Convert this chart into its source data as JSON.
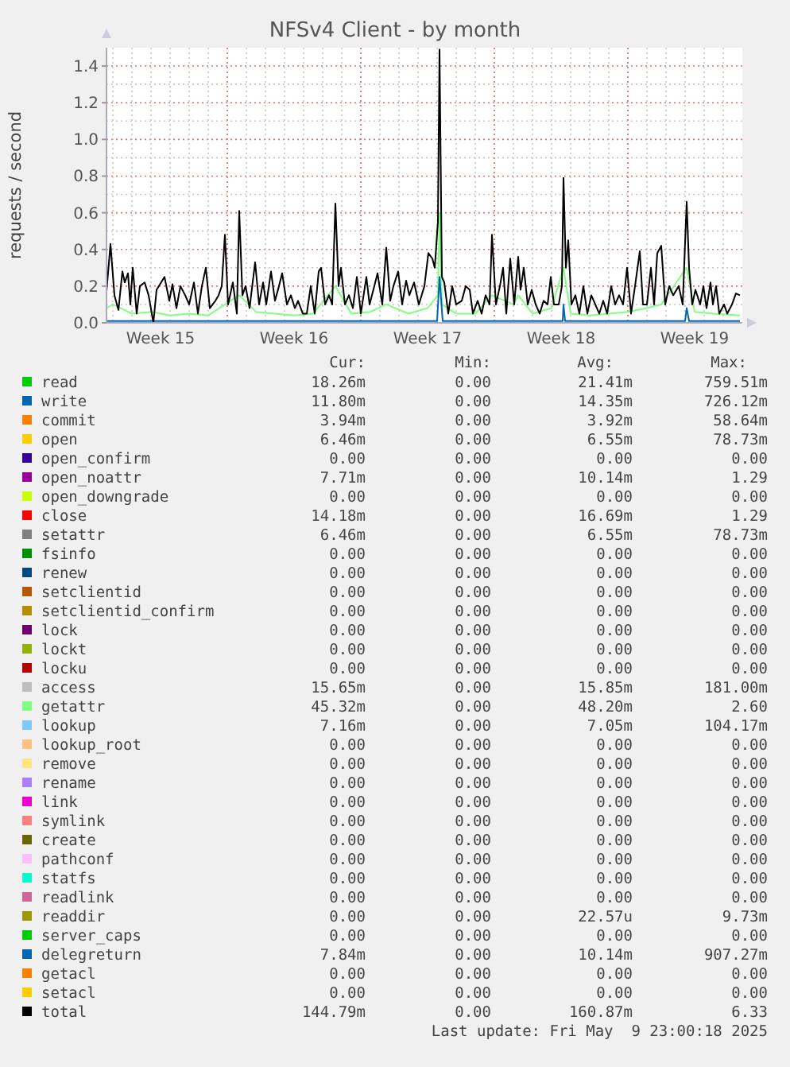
{
  "chart_data": {
    "type": "line",
    "title": "NFSv4 Client - by month",
    "ylabel": "requests / second",
    "xlim": [
      "2025-04-06T16:00",
      "2025-05-10T00:00"
    ],
    "ylim": [
      0,
      1.5
    ],
    "xticks": [
      {
        "value": "2025-04-09T12:00",
        "label": "Week 15"
      },
      {
        "value": "2025-04-16T12:00",
        "label": "Week 16"
      },
      {
        "value": "2025-04-23T12:00",
        "label": "Week 17"
      },
      {
        "value": "2025-04-30T12:00",
        "label": "Week 18"
      },
      {
        "value": "2025-05-07T12:00",
        "label": "Week 19"
      }
    ],
    "yticks": [
      {
        "value": 0,
        "label": "0.0"
      },
      {
        "value": 0.2,
        "label": "0.2"
      },
      {
        "value": 0.4,
        "label": "0.4"
      },
      {
        "value": 0.6,
        "label": "0.6"
      },
      {
        "value": 0.8,
        "label": "0.8"
      },
      {
        "value": 1,
        "label": "1.0"
      },
      {
        "value": 1.2,
        "label": "1.2"
      },
      {
        "value": 1.4,
        "label": "1.4"
      }
    ],
    "grid": true,
    "legend": "bottom",
    "marker": "none",
    "line_style": "solid",
    "series": [
      {
        "name": "read",
        "color": "#00cc00"
      },
      {
        "name": "write",
        "color": "#0066b3"
      },
      {
        "name": "commit",
        "color": "#ff8000"
      },
      {
        "name": "open",
        "color": "#ffcc00"
      },
      {
        "name": "open_confirm",
        "color": "#330099"
      },
      {
        "name": "open_noattr",
        "color": "#990099"
      },
      {
        "name": "open_downgrade",
        "color": "#ccff00"
      },
      {
        "name": "close",
        "color": "#ff0000"
      },
      {
        "name": "setattr",
        "color": "#808080"
      },
      {
        "name": "fsinfo",
        "color": "#008f00"
      },
      {
        "name": "renew",
        "color": "#00487d"
      },
      {
        "name": "setclientid",
        "color": "#b35a00"
      },
      {
        "name": "setclientid_confirm",
        "color": "#b38f00"
      },
      {
        "name": "lock",
        "color": "#6b006b"
      },
      {
        "name": "lockt",
        "color": "#8fb300"
      },
      {
        "name": "locku",
        "color": "#b30000"
      },
      {
        "name": "access",
        "color": "#bebebe"
      },
      {
        "name": "getattr",
        "color": "#80ff80",
        "x": [
          "2025-04-06T16:00",
          "2025-04-07T00:00",
          "2025-04-08T00:00",
          "2025-04-09T00:00",
          "2025-04-10T00:00",
          "2025-04-11T00:00",
          "2025-04-12T00:00",
          "2025-04-12T21:00",
          "2025-04-13T15:00",
          "2025-04-14T12:00",
          "2025-04-15T12:00",
          "2025-04-16T12:00",
          "2025-04-17T12:00",
          "2025-04-18T16:00",
          "2025-04-19T12:00",
          "2025-04-20T12:00",
          "2025-04-21T08:00",
          "2025-04-22T12:00",
          "2025-04-23T12:00",
          "2025-04-24T01:00",
          "2025-04-24T03:00",
          "2025-04-24T06:00",
          "2025-04-25T00:00",
          "2025-04-26T00:00",
          "2025-04-26T21:00",
          "2025-04-28T00:00",
          "2025-04-28T06:00",
          "2025-04-29T00:00",
          "2025-04-30T00:00",
          "2025-04-30T15:00",
          "2025-05-01T00:00",
          "2025-05-02T00:00",
          "2025-05-03T00:00",
          "2025-05-04T00:00",
          "2025-05-05T00:00",
          "2025-05-05T18:00",
          "2025-05-07T02:00",
          "2025-05-07T12:00",
          "2025-05-08T12:00",
          "2025-05-09T21:00"
        ],
        "values": [
          0.08,
          0.1,
          0.05,
          0.06,
          0.04,
          0.05,
          0.04,
          0.1,
          0.15,
          0.06,
          0.05,
          0.04,
          0.05,
          0.2,
          0.05,
          0.06,
          0.1,
          0.05,
          0.08,
          0.15,
          0.6,
          0.1,
          0.05,
          0.05,
          0.15,
          0.1,
          0.15,
          0.05,
          0.08,
          0.3,
          0.05,
          0.04,
          0.05,
          0.06,
          0.08,
          0.1,
          0.3,
          0.06,
          0.05,
          0.04
        ]
      },
      {
        "name": "lookup",
        "color": "#80c9ff"
      },
      {
        "name": "lookup_root",
        "color": "#ffc080"
      },
      {
        "name": "remove",
        "color": "#ffe680"
      },
      {
        "name": "rename",
        "color": "#aa80ff"
      },
      {
        "name": "link",
        "color": "#ee00cc"
      },
      {
        "name": "symlink",
        "color": "#ff8080"
      },
      {
        "name": "create",
        "color": "#666600"
      },
      {
        "name": "pathconf",
        "color": "#ffbfff"
      },
      {
        "name": "statfs",
        "color": "#00ffcc"
      },
      {
        "name": "readlink",
        "color": "#cc6699"
      },
      {
        "name": "readdir",
        "color": "#999900"
      },
      {
        "name": "server_caps",
        "color": "#00cc00"
      },
      {
        "name": "delegreturn",
        "color": "#0066b3",
        "x": [
          "2025-04-06T16:00",
          "2025-04-24T00:00",
          "2025-04-24T03:00",
          "2025-04-24T07:00",
          "2025-04-30T14:00",
          "2025-04-30T15:00",
          "2025-04-30T17:00",
          "2025-05-07T00:00",
          "2025-05-07T02:00",
          "2025-05-07T05:00",
          "2025-05-09T21:00"
        ],
        "values": [
          0.01,
          0.01,
          0.25,
          0.01,
          0.01,
          0.1,
          0.01,
          0.01,
          0.08,
          0.01,
          0.01
        ]
      },
      {
        "name": "getacl",
        "color": "#ff8000"
      },
      {
        "name": "setacl",
        "color": "#ffcc00"
      },
      {
        "name": "total",
        "color": "#000000",
        "x": [
          "2025-04-06T16:00",
          "2025-04-06T21:00",
          "2025-04-07T02:00",
          "2025-04-07T07:00",
          "2025-04-07T12:00",
          "2025-04-07T15:00",
          "2025-04-07T19:00",
          "2025-04-07T22:00",
          "2025-04-08T01:00",
          "2025-04-08T06:00",
          "2025-04-08T10:00",
          "2025-04-08T16:00",
          "2025-04-08T21:00",
          "2025-04-09T03:00",
          "2025-04-09T07:00",
          "2025-04-09T17:00",
          "2025-04-09T23:00",
          "2025-04-10T03:00",
          "2025-04-10T08:00",
          "2025-04-10T13:00",
          "2025-04-10T19:00",
          "2025-04-11T00:00",
          "2025-04-11T06:00",
          "2025-04-11T11:00",
          "2025-04-11T16:00",
          "2025-04-11T21:00",
          "2025-04-12T02:00",
          "2025-04-12T09:00",
          "2025-04-12T13:00",
          "2025-04-12T17:00",
          "2025-04-12T21:00",
          "2025-04-13T01:00",
          "2025-04-13T07:00",
          "2025-04-13T12:00",
          "2025-04-13T15:00",
          "2025-04-13T19:00",
          "2025-04-13T23:00",
          "2025-04-14T04:00",
          "2025-04-14T11:00",
          "2025-04-14T16:00",
          "2025-04-14T21:00",
          "2025-04-15T01:00",
          "2025-04-15T07:00",
          "2025-04-15T12:00",
          "2025-04-15T17:00",
          "2025-04-15T21:00",
          "2025-04-16T03:00",
          "2025-04-16T08:00",
          "2025-04-16T13:00",
          "2025-04-16T17:00",
          "2025-04-16T23:00",
          "2025-04-17T04:00",
          "2025-04-17T09:00",
          "2025-04-17T14:00",
          "2025-04-17T19:00",
          "2025-04-17T22:00",
          "2025-04-18T03:00",
          "2025-04-18T08:00",
          "2025-04-18T12:00",
          "2025-04-18T16:00",
          "2025-04-18T20:00",
          "2025-04-18T23:00",
          "2025-04-19T04:00",
          "2025-04-19T09:00",
          "2025-04-19T14:00",
          "2025-04-19T19:00",
          "2025-04-20T00:00",
          "2025-04-20T07:00",
          "2025-04-20T11:00",
          "2025-04-20T17:00",
          "2025-04-20T21:00",
          "2025-04-21T03:00",
          "2025-04-21T08:00",
          "2025-04-21T13:00",
          "2025-04-21T17:00",
          "2025-04-21T23:00",
          "2025-04-22T04:00",
          "2025-04-22T09:00",
          "2025-04-22T13:00",
          "2025-04-22T19:00",
          "2025-04-23T01:00",
          "2025-04-23T08:00",
          "2025-04-23T13:00",
          "2025-04-23T18:00",
          "2025-04-23T21:00",
          "2025-04-24T01:00",
          "2025-04-24T03:00",
          "2025-04-24T06:00",
          "2025-04-24T09:00",
          "2025-04-24T14:00",
          "2025-04-24T19:00",
          "2025-04-25T00:00",
          "2025-04-25T07:00",
          "2025-04-25T12:00",
          "2025-04-25T17:00",
          "2025-04-25T21:00",
          "2025-04-26T03:00",
          "2025-04-26T08:00",
          "2025-04-26T13:00",
          "2025-04-26T18:00",
          "2025-04-26T21:00",
          "2025-04-27T02:00",
          "2025-04-27T07:00",
          "2025-04-27T11:00",
          "2025-04-27T15:00",
          "2025-04-27T20:00",
          "2025-04-28T01:00",
          "2025-04-28T06:00",
          "2025-04-28T09:00",
          "2025-04-28T13:00",
          "2025-04-28T18:00",
          "2025-04-28T23:00",
          "2025-04-29T04:00",
          "2025-04-29T09:00",
          "2025-04-29T14:00",
          "2025-04-29T19:00",
          "2025-04-29T23:00",
          "2025-04-30T03:00",
          "2025-04-30T09:00",
          "2025-04-30T13:00",
          "2025-04-30T15:00",
          "2025-04-30T18:00",
          "2025-04-30T21:00",
          "2025-05-01T01:00",
          "2025-05-01T06:00",
          "2025-05-01T11:00",
          "2025-05-01T16:00",
          "2025-05-01T21:00",
          "2025-05-02T02:00",
          "2025-05-02T07:00",
          "2025-05-02T12:00",
          "2025-05-02T17:00",
          "2025-05-02T22:00",
          "2025-05-03T03:00",
          "2025-05-03T08:00",
          "2025-05-03T13:00",
          "2025-05-03T18:00",
          "2025-05-03T23:00",
          "2025-05-04T04:00",
          "2025-05-04T09:00",
          "2025-05-04T15:00",
          "2025-05-04T19:00",
          "2025-05-05T00:00",
          "2025-05-05T05:00",
          "2025-05-05T09:00",
          "2025-05-05T13:00",
          "2025-05-05T18:00",
          "2025-05-05T23:00",
          "2025-05-06T04:00",
          "2025-05-06T09:00",
          "2025-05-06T16:00",
          "2025-05-06T21:00",
          "2025-05-07T02:00",
          "2025-05-07T05:00",
          "2025-05-07T09:00",
          "2025-05-07T13:00",
          "2025-05-07T19:00",
          "2025-05-07T23:00",
          "2025-05-08T03:00",
          "2025-05-08T08:00",
          "2025-05-08T11:00",
          "2025-05-08T15:00",
          "2025-05-08T19:00",
          "2025-05-09T01:00",
          "2025-05-09T05:00",
          "2025-05-09T11:00",
          "2025-05-09T16:00",
          "2025-05-09T21:00"
        ],
        "values": [
          0.17,
          0.43,
          0.15,
          0.07,
          0.28,
          0.22,
          0.27,
          0.1,
          0.3,
          0.05,
          0.2,
          0.22,
          0.15,
          0,
          0.18,
          0.25,
          0.12,
          0.21,
          0.08,
          0.2,
          0.15,
          0.1,
          0.22,
          0.05,
          0.2,
          0.3,
          0.08,
          0.12,
          0.15,
          0.2,
          0.48,
          0.1,
          0.22,
          0.05,
          0.61,
          0.15,
          0.2,
          0.08,
          0.33,
          0.1,
          0.22,
          0.1,
          0.28,
          0.12,
          0.2,
          0.27,
          0.1,
          0.15,
          0.08,
          0.12,
          0.05,
          0.05,
          0.2,
          0.05,
          0.28,
          0.3,
          0.1,
          0.15,
          0.1,
          0.65,
          0.2,
          0.3,
          0.1,
          0.15,
          0.08,
          0.25,
          0.05,
          0.25,
          0.1,
          0.2,
          0.27,
          0.1,
          0.41,
          0.12,
          0.2,
          0.28,
          0.1,
          0.23,
          0.15,
          0.22,
          0.1,
          0.2,
          0.38,
          0.35,
          0.3,
          0.55,
          1.49,
          0.25,
          0.22,
          0.05,
          0.2,
          0.1,
          0.12,
          0.2,
          0.18,
          0.05,
          0.12,
          0.05,
          0.15,
          0.1,
          0.48,
          0.1,
          0.2,
          0.3,
          0.05,
          0.35,
          0.1,
          0.36,
          0.18,
          0.3,
          0.1,
          0.18,
          0.1,
          0.05,
          0.12,
          0.1,
          0.25,
          0.1,
          0.1,
          0.2,
          0.79,
          0.3,
          0.45,
          0.1,
          0.15,
          0.05,
          0.2,
          0.05,
          0.15,
          0.1,
          0.05,
          0.12,
          0.05,
          0.2,
          0.1,
          0.15,
          0.1,
          0.3,
          0.05,
          0.2,
          0.39,
          0.1,
          0.1,
          0.3,
          0.1,
          0.38,
          0.42,
          0.1,
          0.2,
          0.15,
          0.2,
          0.1,
          0.66,
          0.3,
          0.1,
          0.18,
          0.1,
          0.2,
          0.08,
          0.22,
          0.1,
          0.2,
          0.05,
          0.1,
          0.05,
          0.1,
          0.16,
          0.15
        ]
      }
    ],
    "annotations": [
      "Cur:",
      "Min:",
      "Avg:",
      "Max:",
      "18.26m",
      "0.00",
      "21.41m",
      "759.51m",
      "11.80m",
      "0.00",
      "14.35m",
      "726.12m",
      "3.94m",
      "0.00",
      "3.92m",
      "58.64m",
      "6.46m",
      "0.00",
      "6.55m",
      "78.73m",
      "0.00",
      "0.00",
      "0.00",
      "0.00",
      "7.71m",
      "0.00",
      "10.14m",
      "1.29",
      "0.00",
      "0.00",
      "0.00",
      "0.00",
      "14.18m",
      "0.00",
      "16.69m",
      "1.29",
      "6.46m",
      "0.00",
      "6.55m",
      "78.73m",
      "0.00",
      "0.00",
      "0.00",
      "0.00",
      "0.00",
      "0.00",
      "0.00",
      "0.00",
      "0.00",
      "0.00",
      "0.00",
      "0.00",
      "0.00",
      "0.00",
      "0.00",
      "0.00",
      "0.00",
      "0.00",
      "0.00",
      "0.00",
      "0.00",
      "0.00",
      "0.00",
      "0.00",
      "0.00",
      "0.00",
      "0.00",
      "0.00",
      "15.65m",
      "0.00",
      "15.85m",
      "181.00m",
      "45.32m",
      "0.00",
      "48.20m",
      "2.60",
      "7.16m",
      "0.00",
      "7.05m",
      "104.17m",
      "0.00",
      "0.00",
      "0.00",
      "0.00",
      "0.00",
      "0.00",
      "0.00",
      "0.00",
      "0.00",
      "0.00",
      "0.00",
      "0.00",
      "0.00",
      "0.00",
      "0.00",
      "0.00",
      "0.00",
      "0.00",
      "0.00",
      "0.00",
      "0.00",
      "0.00",
      "0.00",
      "0.00",
      "0.00",
      "0.00",
      "0.00",
      "0.00",
      "0.00",
      "0.00",
      "0.00",
      "0.00",
      "0.00",
      "0.00",
      "0.00",
      "0.00",
      "0.00",
      "0.00",
      "22.57u",
      "9.73m",
      "0.00",
      "0.00",
      "0.00",
      "0.00",
      "7.84m",
      "0.00",
      "10.14m",
      "907.27m",
      "0.00",
      "0.00",
      "0.00",
      "0.00",
      "0.00",
      "0.00",
      "0.00",
      "0.00",
      "144.79m",
      "0.00",
      "160.87m",
      "6.33",
      "Last update: Fri May  9 23:00:18 2025"
    ]
  }
}
